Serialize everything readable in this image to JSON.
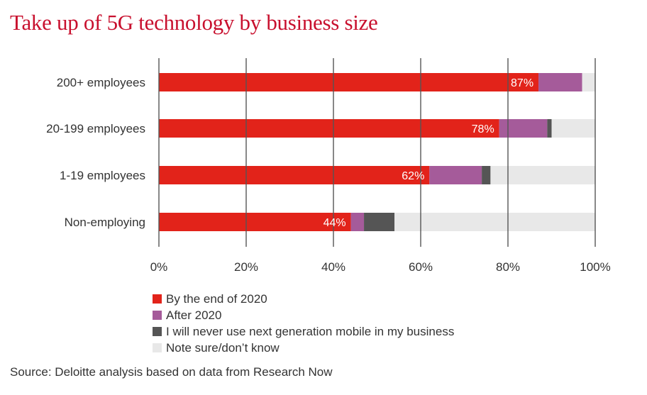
{
  "chart_data": {
    "type": "bar",
    "orientation": "horizontal",
    "stacked": true,
    "title": "Take up of 5G technology by business size",
    "categories": [
      "200+ employees",
      "20-199 employees",
      "1-19 employees",
      "Non-employing"
    ],
    "series": [
      {
        "name": "By the end of 2020",
        "color": "#e2231a",
        "values": [
          87,
          78,
          62,
          44
        ]
      },
      {
        "name": "After 2020",
        "color": "#a55b9a",
        "values": [
          10,
          11,
          12,
          3
        ]
      },
      {
        "name": "I will never use next generation mobile in my business",
        "color": "#555555",
        "values": [
          0,
          1,
          2,
          7
        ]
      },
      {
        "name": "Note sure/don’t know",
        "color": "#e8e8e8",
        "values": [
          3,
          10,
          24,
          46
        ]
      }
    ],
    "data_labels": [
      "87%",
      "78%",
      "62%",
      "44%"
    ],
    "xlim": [
      0,
      100
    ],
    "xticks": [
      0,
      20,
      40,
      60,
      80,
      100
    ],
    "xtick_labels": [
      "0%",
      "20%",
      "40%",
      "60%",
      "80%",
      "100%"
    ],
    "grid": true,
    "legend_placement": "bottom"
  },
  "source": "Source: Deloitte analysis based on data from Research Now"
}
